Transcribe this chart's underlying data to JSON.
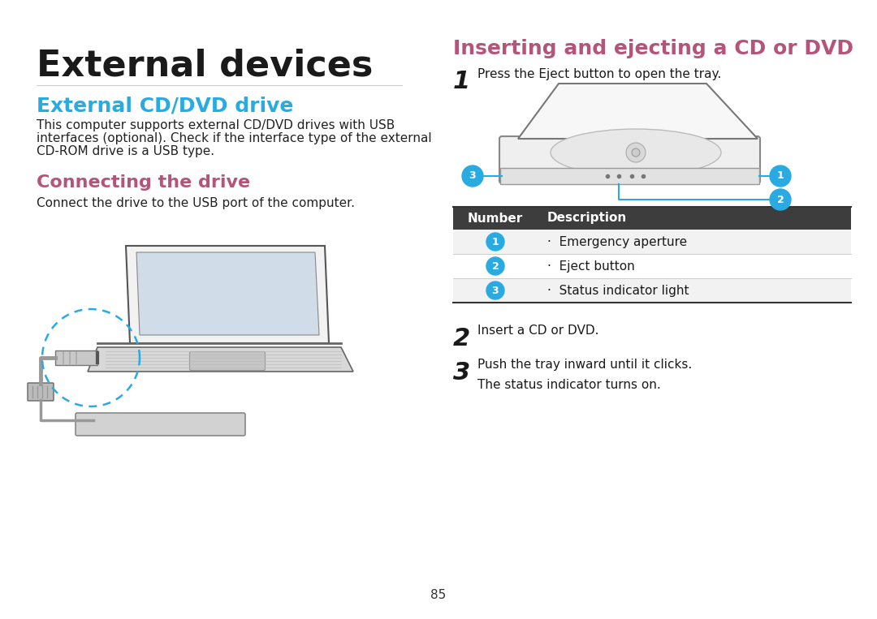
{
  "bg_color": "#ffffff",
  "title": "External devices",
  "title_color": "#1a1a1a",
  "title_fontsize": 32,
  "section1_title": "External CD/DVD drive",
  "section1_color": "#29abe2",
  "section1_fontsize": 18,
  "section1_body_line1": "This computer supports external CD/DVD drives with USB",
  "section1_body_line2": "interfaces (optional). Check if the interface type of the external",
  "section1_body_line3": "CD-ROM drive is a USB type.",
  "section2_title": "Connecting the drive",
  "section2_color": "#b5547a",
  "section2_fontsize": 16,
  "section2_body": "Connect the drive to the USB port of the computer.",
  "section3_title": "Inserting and ejecting a CD or DVD",
  "section3_color": "#b5547a",
  "section3_fontsize": 18,
  "step1_num": "1",
  "step1_text": "Press the Eject button to open the tray.",
  "step2_num": "2",
  "step2_text": "Insert a CD or DVD.",
  "step3_num": "3",
  "step3_text": "Push the tray inward until it clicks.",
  "step3_sub": "The status indicator turns on.",
  "table_header_num": "Number",
  "table_header_desc": "Description",
  "table_rows": [
    [
      "1",
      "·  Emergency aperture"
    ],
    [
      "2",
      "·  Eject button"
    ],
    [
      "3",
      "·  Status indicator light"
    ]
  ],
  "circle_color": "#29abe2",
  "line_color": "#29abe2",
  "page_num": "85",
  "body_fontsize": 11,
  "step_num_fontsize": 22
}
